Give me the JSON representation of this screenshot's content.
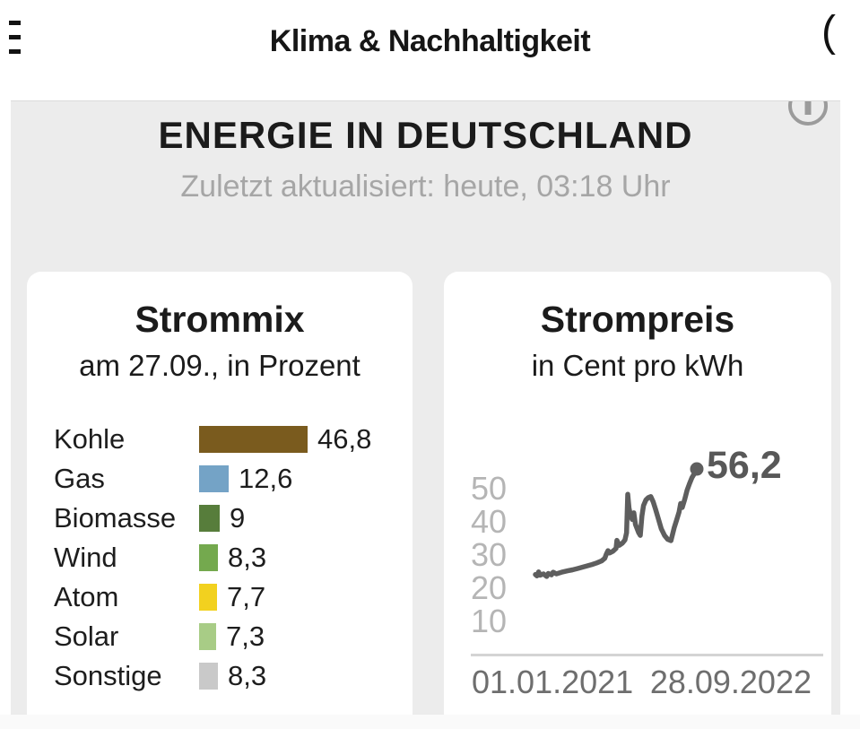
{
  "header": {
    "title": "Klima & Nachhaltigkeit"
  },
  "module": {
    "title": "ENERGIE IN DEUTSCHLAND",
    "updated": "Zuletzt aktualisiert: heute, 03:18 Uhr"
  },
  "icons": {
    "menu": "hamburger-menu",
    "info": "info-circle",
    "header_right": "partial-circle-left-arc"
  },
  "chart_data": [
    {
      "type": "bar",
      "title": "Strommix",
      "subtitle": "am 27.09., in Prozent",
      "orientation": "horizontal",
      "unit": "Prozent",
      "categories": [
        "Kohle",
        "Gas",
        "Biomasse",
        "Wind",
        "Atom",
        "Solar",
        "Sonstige"
      ],
      "values": [
        46.8,
        12.6,
        9,
        8.3,
        7.7,
        7.3,
        8.3
      ],
      "value_labels": [
        "46,8",
        "12,6",
        "9",
        "8,3",
        "7,7",
        "7,3",
        "8,3"
      ],
      "bar_colors": [
        "#7a5b1e",
        "#74a3c6",
        "#577d3b",
        "#74a94e",
        "#f2d11f",
        "#a8cc86",
        "#c9c9c9"
      ],
      "xlim": [
        0,
        50
      ],
      "grid": false,
      "legend": "none"
    },
    {
      "type": "line",
      "title": "Strompreis",
      "subtitle": "in Cent pro kWh",
      "ylabel_ticks": [
        50,
        40,
        30,
        20,
        10
      ],
      "ylim": [
        0,
        60
      ],
      "x_axis_labels": [
        "01.01.2021",
        "28.09.2022"
      ],
      "end_value": 56.2,
      "end_value_label": "56,2",
      "line_color": "#5e5e5e",
      "tick_color": "#b5b5b5",
      "grid": false,
      "legend": "none",
      "points": [
        [
          0.0,
          24.4
        ],
        [
          0.01,
          24.0
        ],
        [
          0.02,
          25.2
        ],
        [
          0.03,
          24.2
        ],
        [
          0.05,
          24.6
        ],
        [
          0.07,
          23.8
        ],
        [
          0.08,
          24.7
        ],
        [
          0.1,
          24.3
        ],
        [
          0.11,
          25.1
        ],
        [
          0.13,
          24.6
        ],
        [
          0.15,
          24.9
        ],
        [
          0.17,
          25.2
        ],
        [
          0.2,
          25.5
        ],
        [
          0.23,
          25.8
        ],
        [
          0.26,
          26.2
        ],
        [
          0.29,
          26.6
        ],
        [
          0.32,
          27.0
        ],
        [
          0.35,
          27.4
        ],
        [
          0.38,
          27.9
        ],
        [
          0.41,
          28.5
        ],
        [
          0.43,
          29.3
        ],
        [
          0.44,
          30.6
        ],
        [
          0.45,
          31.6
        ],
        [
          0.46,
          30.9
        ],
        [
          0.48,
          31.4
        ],
        [
          0.5,
          32.3
        ],
        [
          0.505,
          34.7
        ],
        [
          0.52,
          33.2
        ],
        [
          0.54,
          33.9
        ],
        [
          0.555,
          34.8
        ],
        [
          0.565,
          37.0
        ],
        [
          0.572,
          48.6
        ],
        [
          0.58,
          44.5
        ],
        [
          0.59,
          42.2
        ],
        [
          0.6,
          41.0
        ],
        [
          0.61,
          43.0
        ],
        [
          0.62,
          39.5
        ],
        [
          0.64,
          37.0
        ],
        [
          0.65,
          36.2
        ],
        [
          0.66,
          42.0
        ],
        [
          0.67,
          45.2
        ],
        [
          0.685,
          46.9
        ],
        [
          0.7,
          47.6
        ],
        [
          0.715,
          47.9
        ],
        [
          0.73,
          46.3
        ],
        [
          0.745,
          44.0
        ],
        [
          0.76,
          41.5
        ],
        [
          0.78,
          38.2
        ],
        [
          0.8,
          36.2
        ],
        [
          0.82,
          35.0
        ],
        [
          0.84,
          34.6
        ],
        [
          0.86,
          38.5
        ],
        [
          0.875,
          40.8
        ],
        [
          0.89,
          43.2
        ],
        [
          0.9,
          45.8
        ],
        [
          0.91,
          44.6
        ],
        [
          0.925,
          47.0
        ],
        [
          0.94,
          49.8
        ],
        [
          0.955,
          51.8
        ],
        [
          0.97,
          53.6
        ],
        [
          0.985,
          54.8
        ],
        [
          1.0,
          56.2
        ]
      ]
    }
  ],
  "colors": {
    "page_bg": "#ffffff",
    "module_bg": "#ececec",
    "card_bg": "#ffffff",
    "heading_text": "#1b1b1b",
    "muted_text": "#a6a6a6",
    "tick_text": "#b5b5b5",
    "axis_label_text": "#6e6e6e",
    "line": "#5e5e5e"
  }
}
